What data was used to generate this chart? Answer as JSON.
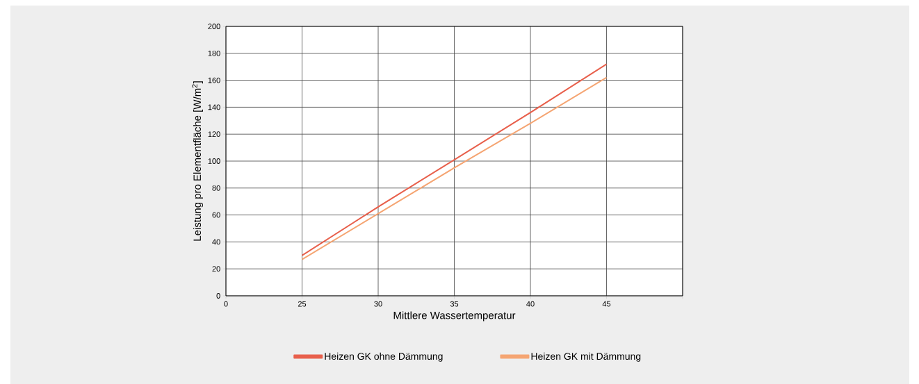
{
  "chart_data": {
    "type": "line",
    "xlabel": "Mittlere Wassertemperatur",
    "ylabel": "Leistung pro Elementfläche [W/m$^{2}$]",
    "categories": [
      "0",
      "25",
      "30",
      "35",
      "40",
      "45",
      null
    ],
    "series": [
      {
        "name": "Heizen GK ohne Dämmung",
        "color": "#e8604c",
        "values": [
          null,
          30,
          66,
          101,
          136,
          172,
          null
        ]
      },
      {
        "name": "Heizen GK mit Dämmung",
        "color": "#f5a573",
        "values": [
          null,
          27,
          61,
          95,
          128,
          162,
          null
        ]
      }
    ],
    "ylim": [
      0,
      200
    ],
    "yticks": [
      0,
      20,
      40,
      60,
      80,
      100,
      120,
      140,
      160,
      180,
      200
    ],
    "grid": true,
    "legend": "bottom",
    "marker": "none",
    "line_style": "solid"
  }
}
